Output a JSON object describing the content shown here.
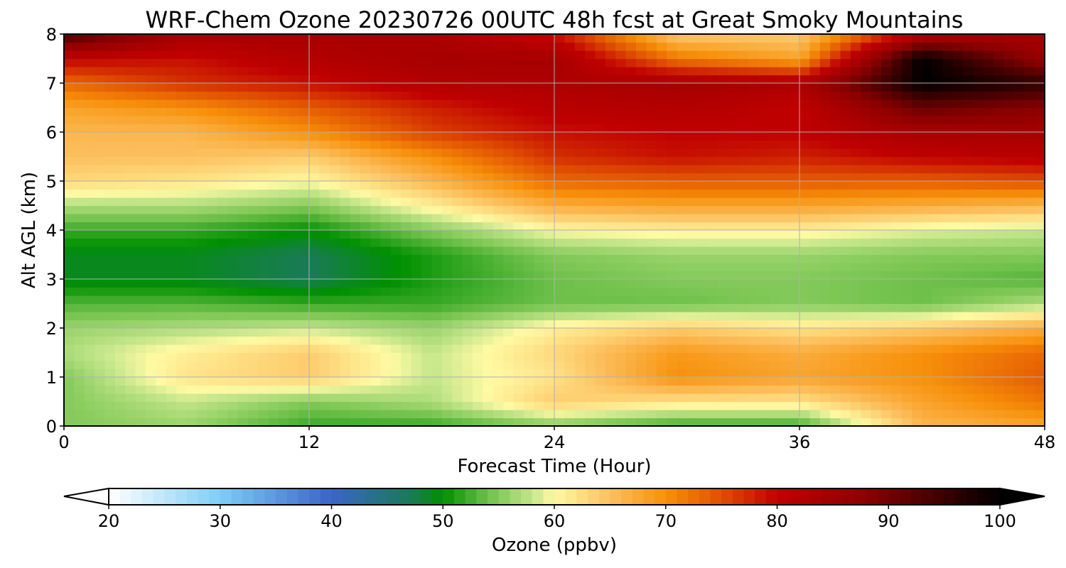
{
  "chart_data": {
    "type": "heatmap",
    "title": "WRF-Chem Ozone  20230726 00UTC 48h fcst at Great Smoky Mountains",
    "xlabel": "Forecast Time (Hour)",
    "ylabel": "Alt AGL (km)",
    "x_ticks": [
      "0",
      "12",
      "24",
      "36",
      "48"
    ],
    "y_ticks": [
      "0",
      "1",
      "2",
      "3",
      "4",
      "5",
      "6",
      "7",
      "8"
    ],
    "xlim": [
      0,
      48
    ],
    "ylim": [
      0,
      8
    ],
    "grid": true,
    "x": [
      0,
      6,
      12,
      18,
      24,
      30,
      36,
      42,
      48
    ],
    "y": [
      0,
      0.5,
      1,
      1.5,
      2,
      2.5,
      3,
      3.5,
      4,
      4.5,
      5,
      5.5,
      6,
      6.5,
      7,
      7.5,
      8
    ],
    "z": [
      [
        55,
        56,
        52,
        52,
        55,
        52,
        52,
        66,
        68
      ],
      [
        55,
        58,
        55,
        57,
        64,
        62,
        62,
        68,
        72
      ],
      [
        55,
        62,
        64,
        58,
        62,
        70,
        68,
        70,
        74
      ],
      [
        57,
        61,
        64,
        58,
        63,
        69,
        67,
        70,
        73
      ],
      [
        56,
        57,
        58,
        56,
        61,
        64,
        62,
        64,
        67
      ],
      [
        53,
        53,
        52,
        52,
        54,
        54,
        55,
        54,
        57
      ],
      [
        49,
        49,
        47,
        51,
        54,
        55,
        55,
        54,
        53
      ],
      [
        49,
        49,
        47,
        51,
        55,
        56,
        56,
        55,
        55
      ],
      [
        52,
        52,
        50,
        55,
        60,
        61,
        61,
        59,
        58
      ],
      [
        57,
        57,
        55,
        61,
        67,
        68,
        68,
        67,
        66
      ],
      [
        63,
        62,
        60,
        66,
        73,
        74,
        74,
        74,
        75
      ],
      [
        65,
        65,
        64,
        70,
        77,
        79,
        78,
        80,
        81
      ],
      [
        66,
        66,
        70,
        76,
        79,
        80,
        80,
        84,
        84
      ],
      [
        68,
        70,
        74,
        78,
        81,
        82,
        80,
        91,
        88
      ],
      [
        73,
        77,
        79,
        82,
        83,
        84,
        83,
        100,
        96
      ],
      [
        80,
        79,
        82,
        84,
        84,
        72,
        68,
        100,
        86
      ],
      [
        94,
        84,
        84,
        83,
        79,
        64,
        64,
        82,
        84
      ]
    ],
    "colorbar": {
      "label": "Ozone  (ppbv)",
      "ticks": [
        "20",
        "30",
        "40",
        "50",
        "60",
        "70",
        "80",
        "90",
        "100"
      ],
      "vmin": 20,
      "vmax": 100,
      "extend": "both",
      "color_stops": [
        [
          20,
          "#ffffff"
        ],
        [
          30,
          "#7dcdf5"
        ],
        [
          40,
          "#3a64c8"
        ],
        [
          47,
          "#1a7a58"
        ],
        [
          50,
          "#009000"
        ],
        [
          54,
          "#6ec04a"
        ],
        [
          58,
          "#c4e68a"
        ],
        [
          60,
          "#fffaa4"
        ],
        [
          65,
          "#fcc05e"
        ],
        [
          70,
          "#f7900a"
        ],
        [
          75,
          "#e04f00"
        ],
        [
          80,
          "#c00000"
        ],
        [
          88,
          "#8c0000"
        ],
        [
          95,
          "#3a0000"
        ],
        [
          100,
          "#000000"
        ]
      ]
    }
  }
}
